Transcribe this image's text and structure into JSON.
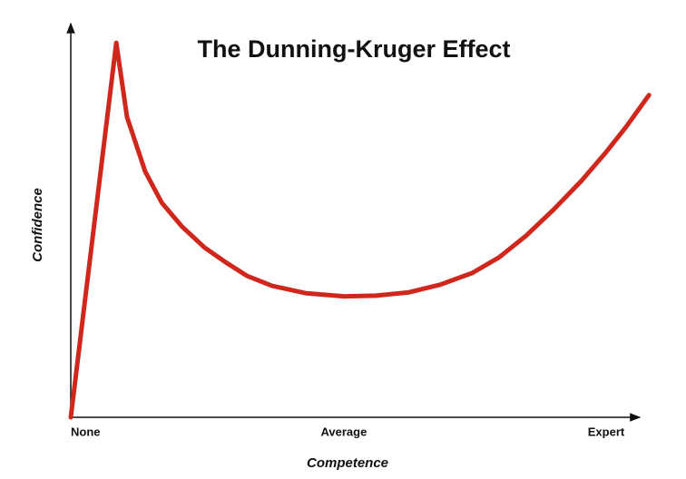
{
  "chart_data": {
    "type": "line",
    "title": "The Dunning-Kruger Effect",
    "x_label": "Competence",
    "y_label": "Confidence",
    "xlim": [
      0,
      110
    ],
    "ylim": [
      0,
      100
    ],
    "xticks": [
      {
        "value": 0,
        "label": "None"
      },
      {
        "value": 51,
        "label": "Average"
      },
      {
        "value": 100,
        "label": "Expert"
      }
    ],
    "x": [
      0,
      8.5,
      10.5,
      13.9,
      17,
      20.7,
      25,
      29.2,
      33,
      37.6,
      44,
      51.2,
      57,
      63,
      69,
      75,
      80,
      85,
      90,
      95.3,
      100,
      103.7,
      108
    ],
    "series": [
      {
        "color": "#d0271d",
        "values": [
          0,
          96,
          77,
          63,
          55,
          49,
          43.5,
          39.5,
          36.2,
          33.7,
          31.8,
          31,
          31.2,
          32,
          34,
          37,
          41,
          46.5,
          53,
          60.5,
          68,
          74.4,
          82.6
        ]
      }
    ]
  }
}
